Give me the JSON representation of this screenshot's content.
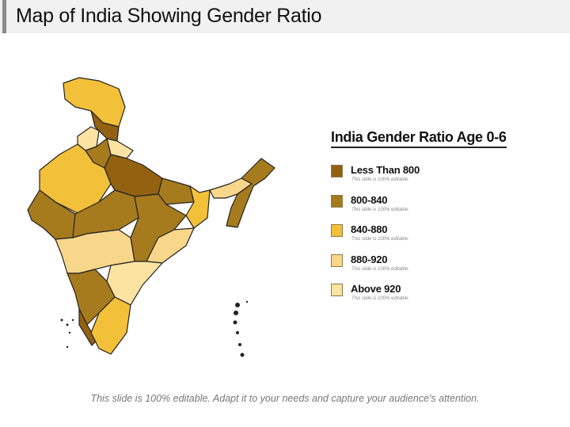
{
  "header": {
    "title": "Map of India Showing Gender Ratio"
  },
  "legend": {
    "title": "India Gender Ratio Age 0-6",
    "items": [
      {
        "label": "Less Than 800",
        "note": "This slide is 100% editable.",
        "color": "#936210"
      },
      {
        "label": "800-840",
        "note": "This slide is 100% editable.",
        "color": "#a67b1e"
      },
      {
        "label": "840-880",
        "note": "This slide is 100% editable.",
        "color": "#f3c03a"
      },
      {
        "label": "880-920",
        "note": "This slide is 100% editable.",
        "color": "#f8d68a"
      },
      {
        "label": "Above 920",
        "note": "This slide is 100% editable.",
        "color": "#fde3a2"
      }
    ]
  },
  "footer": {
    "text": "This slide is 100% editable. Adapt it to your needs and capture your audience's attention."
  }
}
